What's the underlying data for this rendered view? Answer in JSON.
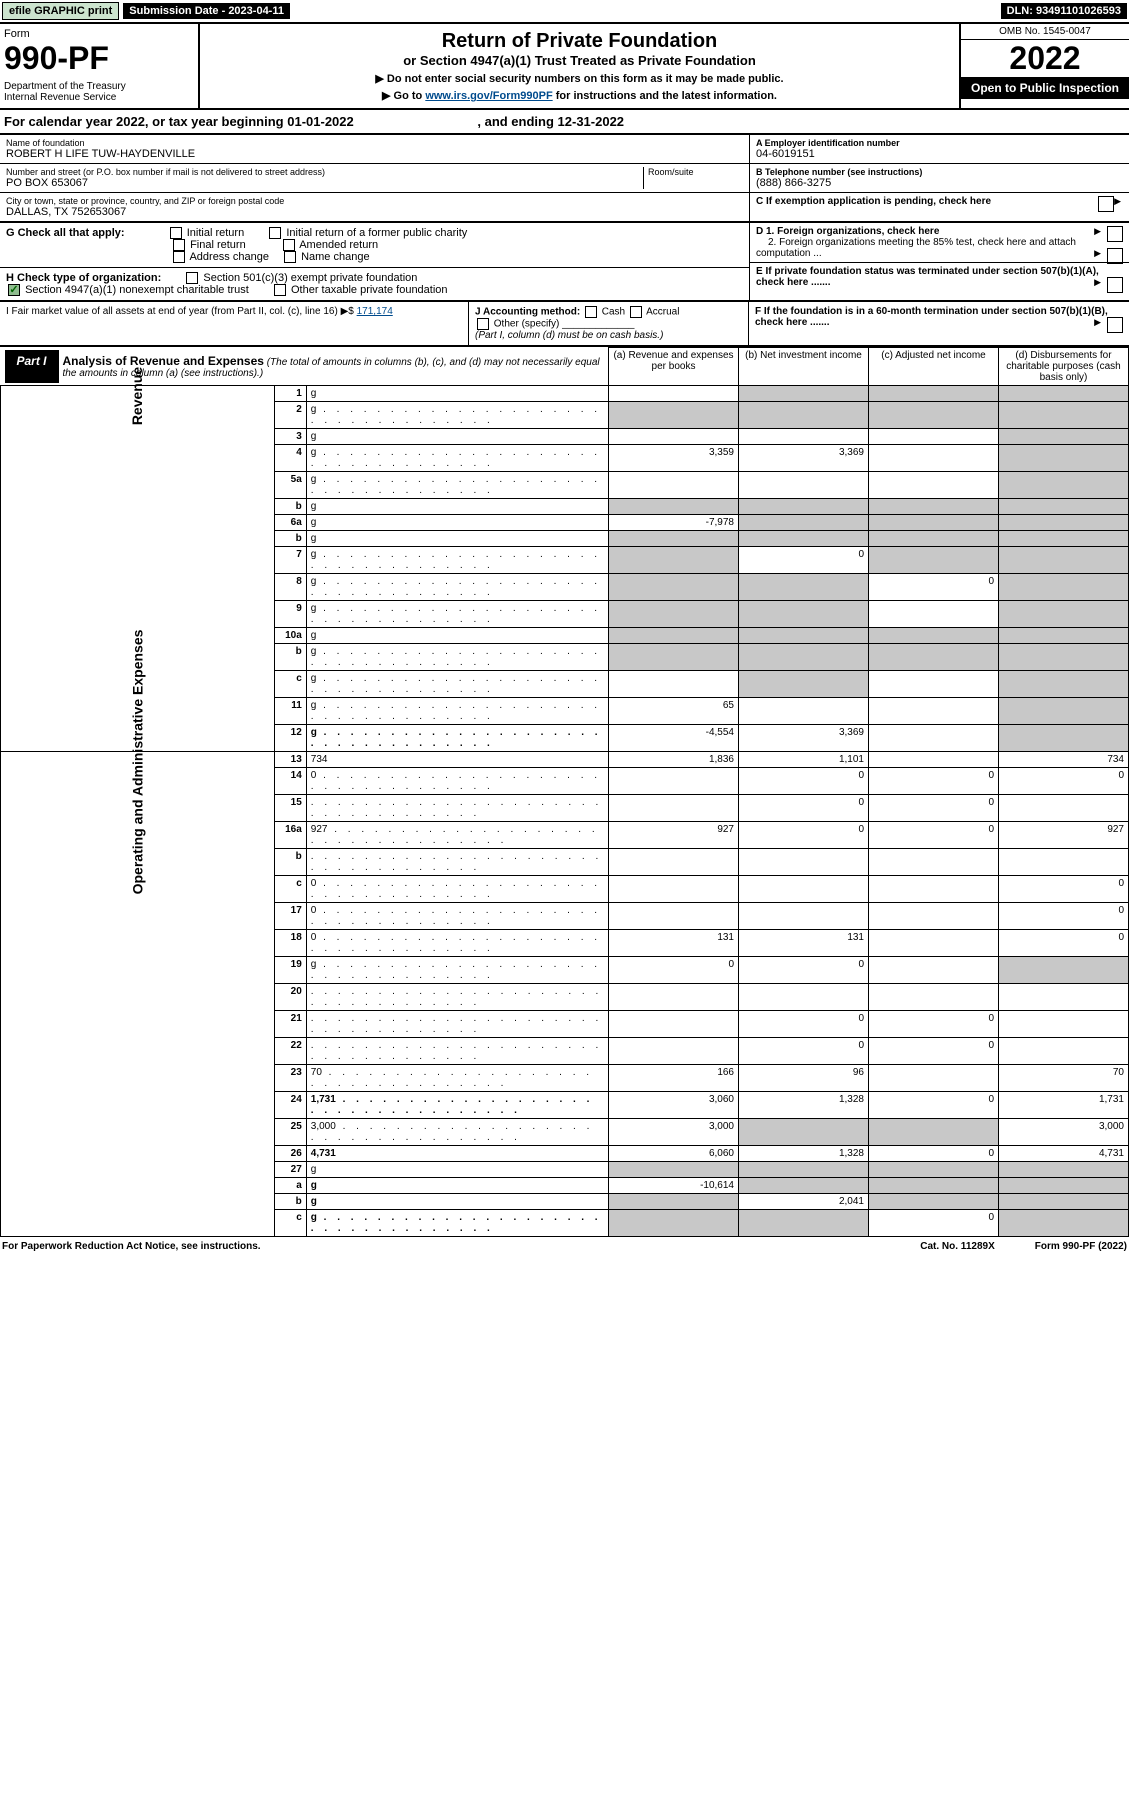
{
  "topbar": {
    "efile": "efile GRAPHIC print",
    "submission": "Submission Date - 2023-04-11",
    "dln": "DLN: 93491101026593"
  },
  "header": {
    "form_word": "Form",
    "form_no": "990-PF",
    "dept": "Department of the Treasury\nInternal Revenue Service",
    "title": "Return of Private Foundation",
    "subtitle": "or Section 4947(a)(1) Trust Treated as Private Foundation",
    "instr1": "▶ Do not enter social security numbers on this form as it may be made public.",
    "instr2_pre": "▶ Go to ",
    "instr2_link": "www.irs.gov/Form990PF",
    "instr2_post": " for instructions and the latest information.",
    "omb": "OMB No. 1545-0047",
    "year": "2022",
    "open": "Open to Public Inspection"
  },
  "cal_year": {
    "prefix": "For calendar year 2022, or tax year beginning ",
    "begin": "01-01-2022",
    "mid": " , and ending ",
    "end": "12-31-2022"
  },
  "id": {
    "name_lbl": "Name of foundation",
    "name": "ROBERT H LIFE TUW-HAYDENVILLE",
    "addr_lbl": "Number and street (or P.O. box number if mail is not delivered to street address)",
    "addr": "PO BOX 653067",
    "room_lbl": "Room/suite",
    "city_lbl": "City or town, state or province, country, and ZIP or foreign postal code",
    "city": "DALLAS, TX  752653067",
    "ein_lbl": "A Employer identification number",
    "ein": "04-6019151",
    "phone_lbl": "B Telephone number (see instructions)",
    "phone": "(888) 866-3275",
    "c_lbl": "C If exemption application is pending, check here"
  },
  "checks": {
    "g_lbl": "G Check all that apply:",
    "g_opts": [
      "Initial return",
      "Initial return of a former public charity",
      "Final return",
      "Amended return",
      "Address change",
      "Name change"
    ],
    "h_lbl": "H Check type of organization:",
    "h1": "Section 501(c)(3) exempt private foundation",
    "h2": "Section 4947(a)(1) nonexempt charitable trust",
    "h3": "Other taxable private foundation",
    "d1": "D 1. Foreign organizations, check here",
    "d2": "2. Foreign organizations meeting the 85% test, check here and attach computation ...",
    "e": "E  If private foundation status was terminated under section 507(b)(1)(A), check here .......",
    "i_lbl": "I Fair market value of all assets at end of year (from Part II, col. (c), line 16) ▶$ ",
    "i_val": "171,174",
    "j_lbl": "J Accounting method:",
    "j_cash": "Cash",
    "j_accrual": "Accrual",
    "j_other": "Other (specify)",
    "j_note": "(Part I, column (d) must be on cash basis.)",
    "f": "F  If the foundation is in a 60-month termination under section 507(b)(1)(B), check here ......."
  },
  "part1": {
    "lbl": "Part I",
    "title": "Analysis of Revenue and Expenses",
    "note": " (The total of amounts in columns (b), (c), and (d) may not necessarily equal the amounts in column (a) (see instructions).)",
    "col_a": "(a) Revenue and expenses per books",
    "col_b": "(b) Net investment income",
    "col_c": "(c) Adjusted net income",
    "col_d": "(d) Disbursements for charitable purposes (cash basis only)"
  },
  "side": {
    "rev": "Revenue",
    "exp": "Operating and Administrative Expenses"
  },
  "rows": [
    {
      "n": "1",
      "d": "g",
      "a": "",
      "b": "g",
      "c": "g"
    },
    {
      "n": "2",
      "d": "g",
      "dots": true,
      "a": "g",
      "b": "g",
      "c": "g"
    },
    {
      "n": "3",
      "d": "g",
      "a": "",
      "b": "",
      "c": ""
    },
    {
      "n": "4",
      "d": "g",
      "dots": true,
      "a": "3,359",
      "b": "3,369",
      "c": ""
    },
    {
      "n": "5a",
      "d": "g",
      "dots": true,
      "a": "",
      "b": "",
      "c": ""
    },
    {
      "n": "b",
      "d": "g",
      "a": "g",
      "b": "g",
      "c": "g"
    },
    {
      "n": "6a",
      "d": "g",
      "a": "-7,978",
      "b": "g",
      "c": "g"
    },
    {
      "n": "b",
      "d": "g",
      "a": "g",
      "b": "g",
      "c": "g"
    },
    {
      "n": "7",
      "d": "g",
      "dots": true,
      "a": "g",
      "b": "0",
      "c": "g"
    },
    {
      "n": "8",
      "d": "g",
      "dots": true,
      "a": "g",
      "b": "g",
      "c": "0"
    },
    {
      "n": "9",
      "d": "g",
      "dots": true,
      "a": "g",
      "b": "g",
      "c": ""
    },
    {
      "n": "10a",
      "d": "g",
      "a": "g",
      "b": "g",
      "c": "g"
    },
    {
      "n": "b",
      "d": "g",
      "dots": true,
      "a": "g",
      "b": "g",
      "c": "g"
    },
    {
      "n": "c",
      "d": "g",
      "dots": true,
      "a": "",
      "b": "g",
      "c": ""
    },
    {
      "n": "11",
      "d": "g",
      "dots": true,
      "a": "65",
      "b": "",
      "c": ""
    },
    {
      "n": "12",
      "d": "g",
      "dots": true,
      "bold": true,
      "a": "-4,554",
      "b": "3,369",
      "c": ""
    },
    {
      "n": "13",
      "d": "734",
      "a": "1,836",
      "b": "1,101",
      "c": ""
    },
    {
      "n": "14",
      "d": "0",
      "dots": true,
      "a": "",
      "b": "0",
      "c": "0"
    },
    {
      "n": "15",
      "d": "",
      "dots": true,
      "a": "",
      "b": "0",
      "c": "0"
    },
    {
      "n": "16a",
      "d": "927",
      "dots": true,
      "a": "927",
      "b": "0",
      "c": "0"
    },
    {
      "n": "b",
      "d": "",
      "dots": true,
      "a": "",
      "b": "",
      "c": ""
    },
    {
      "n": "c",
      "d": "0",
      "dots": true,
      "a": "",
      "b": "",
      "c": ""
    },
    {
      "n": "17",
      "d": "0",
      "dots": true,
      "a": "",
      "b": "",
      "c": ""
    },
    {
      "n": "18",
      "d": "0",
      "dots": true,
      "a": "131",
      "b": "131",
      "c": ""
    },
    {
      "n": "19",
      "d": "g",
      "dots": true,
      "a": "0",
      "b": "0",
      "c": ""
    },
    {
      "n": "20",
      "d": "",
      "dots": true,
      "a": "",
      "b": "",
      "c": ""
    },
    {
      "n": "21",
      "d": "",
      "dots": true,
      "a": "",
      "b": "0",
      "c": "0"
    },
    {
      "n": "22",
      "d": "",
      "dots": true,
      "a": "",
      "b": "0",
      "c": "0"
    },
    {
      "n": "23",
      "d": "70",
      "dots": true,
      "a": "166",
      "b": "96",
      "c": ""
    },
    {
      "n": "24",
      "d": "1,731",
      "dots": true,
      "bold": true,
      "a": "3,060",
      "b": "1,328",
      "c": "0"
    },
    {
      "n": "25",
      "d": "3,000",
      "dots": true,
      "a": "3,000",
      "b": "g",
      "c": "g"
    },
    {
      "n": "26",
      "d": "4,731",
      "bold": true,
      "a": "6,060",
      "b": "1,328",
      "c": "0"
    },
    {
      "n": "27",
      "d": "g",
      "a": "g",
      "b": "g",
      "c": "g"
    },
    {
      "n": "a",
      "d": "g",
      "bold": true,
      "a": "-10,614",
      "b": "g",
      "c": "g"
    },
    {
      "n": "b",
      "d": "g",
      "bold": true,
      "a": "g",
      "b": "2,041",
      "c": "g"
    },
    {
      "n": "c",
      "d": "g",
      "dots": true,
      "bold": true,
      "a": "g",
      "b": "g",
      "c": "0"
    }
  ],
  "footer": {
    "left": "For Paperwork Reduction Act Notice, see instructions.",
    "mid": "Cat. No. 11289X",
    "right": "Form 990-PF (2022)"
  },
  "colors": {
    "efile_bg": "#cce4ce",
    "black": "#000000",
    "link": "#004b8d",
    "grey": "#c8c8c8",
    "check_green": "#8fbc8f"
  }
}
